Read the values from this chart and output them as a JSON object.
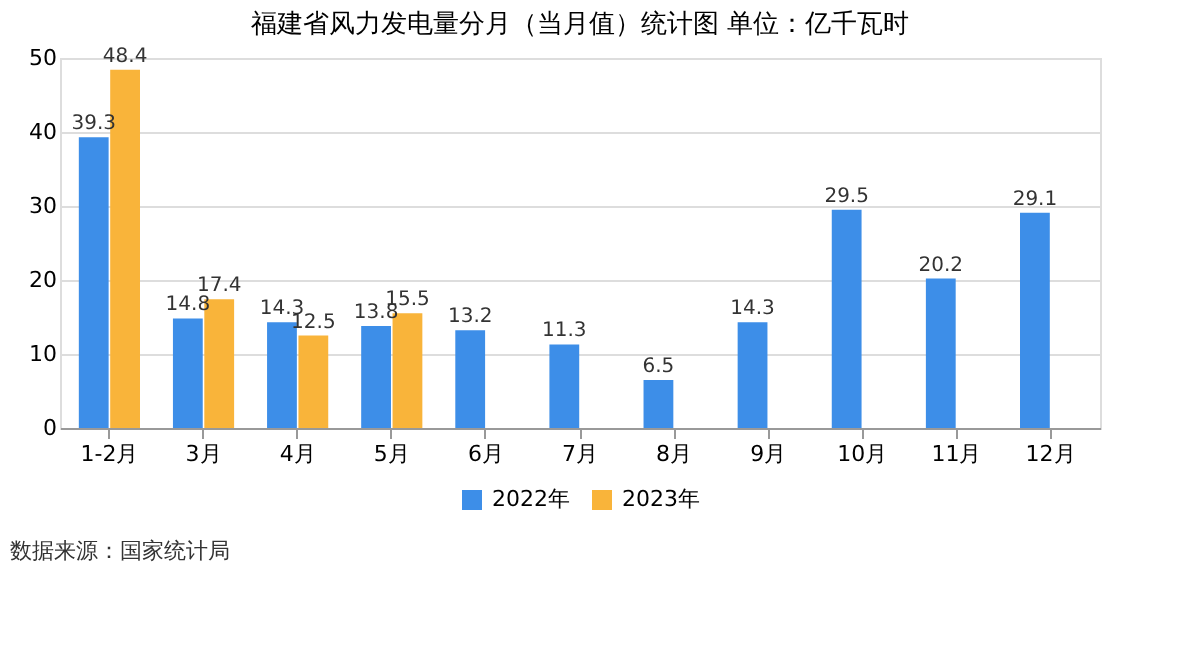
{
  "chart_data": {
    "type": "bar",
    "title": "福建省风力发电量分月（当月值）统计图 单位：亿千瓦时",
    "categories": [
      "1-2月",
      "3月",
      "4月",
      "5月",
      "6月",
      "7月",
      "8月",
      "9月",
      "10月",
      "11月",
      "12月"
    ],
    "series": [
      {
        "name": "2022年",
        "color": "#3d8ee8",
        "values": [
          39.3,
          14.8,
          14.3,
          13.8,
          13.2,
          11.3,
          6.5,
          14.3,
          29.5,
          20.2,
          29.1
        ]
      },
      {
        "name": "2023年",
        "color": "#f9b43a",
        "values": [
          48.4,
          17.4,
          12.5,
          15.5,
          null,
          null,
          null,
          null,
          null,
          null,
          null
        ]
      }
    ],
    "ylim": [
      0,
      50
    ],
    "yticks": [
      0,
      10,
      20,
      30,
      40,
      50
    ],
    "grid": "y",
    "legend": "bottom",
    "data_labels": true,
    "annotations": [
      "数据来源：国家统计局"
    ]
  }
}
